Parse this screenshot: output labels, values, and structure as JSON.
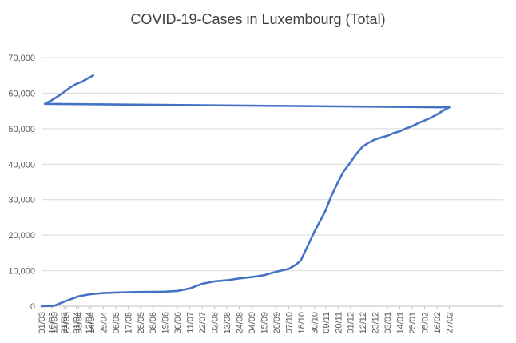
{
  "chart_data": {
    "type": "line",
    "title": "COVID-19-Cases in Luxembourg (Total)",
    "xlabel": "",
    "ylabel": "",
    "ylim": [
      0,
      70000
    ],
    "yticks": [
      0,
      10000,
      20000,
      30000,
      40000,
      50000,
      60000,
      70000
    ],
    "ytick_labels": [
      "0",
      "10,000",
      "20,000",
      "30,000",
      "40,000",
      "50,000",
      "60,000",
      "70,000"
    ],
    "xtick_labels": [
      "01/03",
      "12/03",
      "23/03",
      "03/04",
      "14/04",
      "25/04",
      "06/05",
      "17/05",
      "28/05",
      "08/06",
      "19/06",
      "30/06",
      "11/07",
      "22/07",
      "02/08",
      "13/08",
      "24/08",
      "04/09",
      "15/09",
      "26/09",
      "07/10",
      "18/10",
      "30/10",
      "09/11",
      "20/11",
      "01/12",
      "12/12",
      "23/12",
      "03/01",
      "14/01",
      "25/01",
      "05/02",
      "16/02",
      "27/02",
      "10/03",
      "21/03",
      "01/04",
      "12/04"
    ],
    "grid": true,
    "legend": "none",
    "line_color": "#4472c4",
    "series": [
      {
        "name": "",
        "x": [
          "01/03",
          "12/03",
          "23/03",
          "03/04",
          "14/04",
          "25/04",
          "06/05",
          "17/05",
          "28/05",
          "08/06",
          "19/06",
          "30/06",
          "11/07",
          "22/07",
          "02/08",
          "13/08",
          "24/08",
          "04/09",
          "15/09",
          "26/09",
          "07/10",
          "14/10",
          "18/10",
          "24/10",
          "30/10",
          "04/11",
          "09/11",
          "14/11",
          "20/11",
          "25/11",
          "01/12",
          "06/12",
          "12/12",
          "17/12",
          "23/12",
          "28/12",
          "03/01",
          "08/01",
          "14/01",
          "19/01",
          "25/01",
          "30/01",
          "05/02",
          "10/02",
          "16/02",
          "21/02",
          "27/02",
          "04/03",
          "10/03",
          "15/03",
          "21/03",
          "26/03",
          "01/04",
          "06/04",
          "12/04",
          "16/04"
        ],
        "values": [
          0,
          100,
          1500,
          2800,
          3400,
          3700,
          3850,
          3950,
          4000,
          4050,
          4100,
          4300,
          5000,
          6300,
          7000,
          7300,
          7800,
          8200,
          8700,
          9700,
          10500,
          11800,
          13000,
          17000,
          21000,
          24000,
          27000,
          31000,
          35000,
          38000,
          40500,
          42800,
          45000,
          46000,
          47000,
          47500,
          48000,
          48700,
          49300,
          50000,
          50700,
          51500,
          52300,
          53000,
          54000,
          55000,
          56000,
          57000,
          58000,
          59000,
          60300,
          61500,
          62600,
          63200,
          64300,
          65000
        ]
      }
    ]
  }
}
